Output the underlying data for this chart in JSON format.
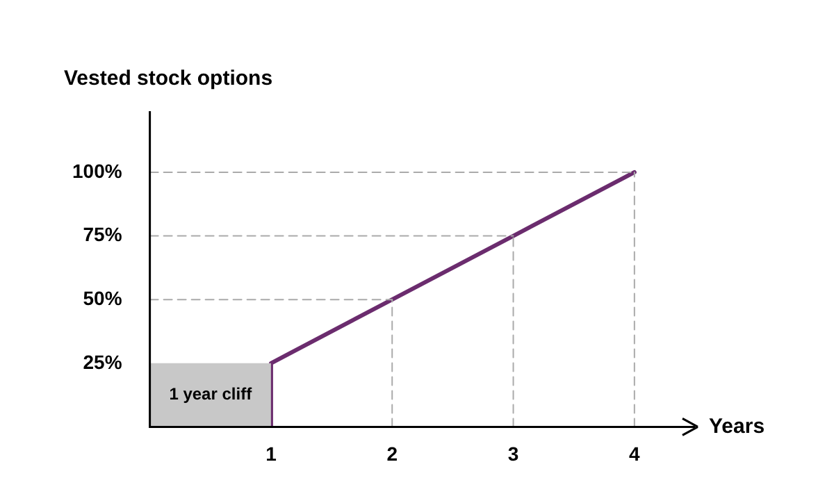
{
  "chart_data": {
    "type": "line",
    "ylabel": "Vested stock options",
    "xlabel": "Years",
    "series": [
      {
        "type": "area",
        "name": "1 year cliff",
        "color": "#c8c8c8",
        "x": [
          0,
          1
        ],
        "values": [
          25,
          25
        ]
      },
      {
        "type": "line",
        "color": "#aaaaaa",
        "line_style": "dashed",
        "x": [
          0,
          2
        ],
        "values": [
          50,
          50
        ]
      },
      {
        "type": "line",
        "color": "#aaaaaa",
        "line_style": "dashed",
        "x": [
          0,
          3
        ],
        "values": [
          75,
          75
        ]
      },
      {
        "type": "line",
        "color": "#aaaaaa",
        "line_style": "dashed",
        "x": [
          0,
          4
        ],
        "values": [
          100,
          100
        ]
      },
      {
        "type": "line",
        "color": "#aaaaaa",
        "line_style": "dashed",
        "x": [
          2,
          2
        ],
        "values": [
          0,
          50
        ]
      },
      {
        "type": "line",
        "color": "#aaaaaa",
        "line_style": "dashed",
        "x": [
          3,
          3
        ],
        "values": [
          0,
          75
        ]
      },
      {
        "type": "line",
        "color": "#aaaaaa",
        "line_style": "dashed",
        "x": [
          4,
          4
        ],
        "values": [
          0,
          100
        ]
      },
      {
        "type": "line",
        "color": "#6b2c6e",
        "x": [
          0,
          1,
          1,
          2,
          3,
          4
        ],
        "values": [
          0,
          0,
          25,
          50,
          75,
          100
        ]
      }
    ],
    "xlim": [
      0,
      4.5
    ],
    "xticks": [
      1,
      2,
      3,
      4
    ],
    "ylim": [
      0,
      124
    ],
    "yticks": [
      {
        "value": 25,
        "label": "25%"
      },
      {
        "value": 50,
        "label": "50%"
      },
      {
        "value": 75,
        "label": "75%"
      },
      {
        "value": 100,
        "label": "100%"
      }
    ],
    "legend": false,
    "marker": "none",
    "line_style": "solid"
  }
}
